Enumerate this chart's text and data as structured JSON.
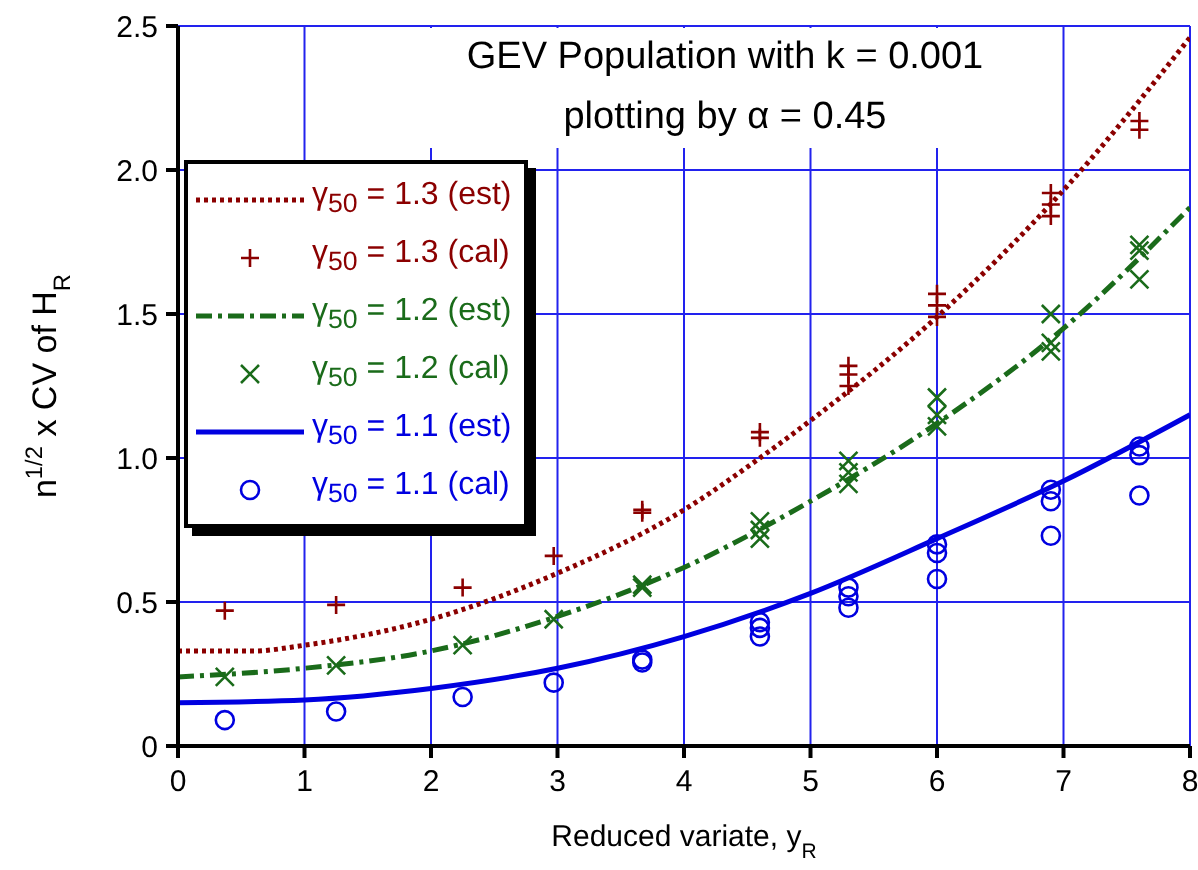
{
  "chart_data": {
    "type": "scatter",
    "title": "GEV  Population  with  k = 0.001",
    "subtitle": "plotting  by  α = 0.45",
    "xlabel": "Reduced variate,  y$_{R}$",
    "ylabel": "n$^{1/2}$ x CV of  H$_{R}$",
    "xlim": [
      0,
      8
    ],
    "xticks": [
      0,
      1,
      2,
      3,
      4,
      5,
      6,
      7,
      8
    ],
    "ylim": [
      0,
      2.5
    ],
    "yticks": [
      0,
      0.5,
      {
        "value": 1,
        "label": "1.0"
      },
      1.5,
      {
        "value": 2,
        "label": "2.0"
      },
      2.5
    ],
    "grid": true,
    "legend": "top left",
    "series": [
      {
        "name": "γ$_{50}$ = 1.3 (est)",
        "type": "line",
        "color": "#8b0000",
        "line_style": "dotted",
        "marker": "none",
        "x": [
          0,
          0.6,
          1,
          2,
          3,
          4,
          4.6,
          5,
          6,
          7,
          8
        ],
        "values": [
          0.33,
          0.33,
          0.35,
          0.44,
          0.6,
          0.82,
          1.0,
          1.13,
          1.49,
          1.93,
          2.46
        ]
      },
      {
        "name": "γ$_{50}$ = 1.3 (cal)",
        "color": "#8b0000",
        "marker": "plus",
        "x": [
          0.37,
          1.25,
          2.25,
          2.97,
          3.67,
          3.67,
          4.6,
          4.6,
          5.3,
          5.3,
          5.3,
          6.0,
          6.0,
          6.0,
          6.9,
          6.9,
          6.9,
          7.6,
          7.6
        ],
        "values": [
          0.47,
          0.49,
          0.55,
          0.66,
          0.82,
          0.81,
          1.09,
          1.07,
          1.32,
          1.29,
          1.25,
          1.57,
          1.53,
          1.49,
          1.92,
          1.88,
          1.84,
          2.17,
          2.14
        ]
      },
      {
        "name": "γ$_{50}$ = 1.2 (est)",
        "type": "line",
        "color": "#1a6b1a",
        "line_style": "dashed",
        "marker": "none",
        "x": [
          0,
          1,
          2,
          3,
          4,
          5,
          6,
          7,
          8
        ],
        "values": [
          0.24,
          0.27,
          0.33,
          0.45,
          0.62,
          0.85,
          1.12,
          1.45,
          1.87
        ]
      },
      {
        "name": "γ$_{50}$ = 1.2 (cal)",
        "color": "#1a6b1a",
        "marker": "cross",
        "x": [
          0.37,
          1.25,
          2.25,
          2.97,
          3.67,
          3.67,
          4.6,
          4.6,
          4.6,
          5.3,
          5.3,
          5.3,
          6.0,
          6.0,
          6.0,
          6.9,
          6.9,
          6.9,
          7.6,
          7.6,
          7.6
        ],
        "values": [
          0.24,
          0.28,
          0.35,
          0.44,
          0.56,
          0.55,
          0.78,
          0.75,
          0.72,
          0.99,
          0.95,
          0.91,
          1.21,
          1.15,
          1.11,
          1.5,
          1.4,
          1.37,
          1.74,
          1.72,
          1.62
        ]
      },
      {
        "name": "γ$_{50}$ = 1.1 (est)",
        "type": "line",
        "color": "#0000e0",
        "line_style": "solid",
        "marker": "none",
        "x": [
          0,
          1,
          2,
          3,
          4,
          5,
          6,
          7,
          8
        ],
        "values": [
          0.15,
          0.16,
          0.2,
          0.27,
          0.38,
          0.53,
          0.72,
          0.92,
          1.15
        ]
      },
      {
        "name": "γ$_{50}$ = 1.1 (cal)",
        "color": "#0000e0",
        "marker": "circle",
        "x": [
          0.37,
          1.25,
          2.25,
          2.97,
          3.67,
          3.67,
          4.6,
          4.6,
          4.6,
          5.3,
          5.3,
          5.3,
          6.0,
          6.0,
          6.0,
          6.9,
          6.9,
          6.9,
          7.6,
          7.6,
          7.6
        ],
        "values": [
          0.09,
          0.12,
          0.17,
          0.22,
          0.3,
          0.29,
          0.43,
          0.41,
          0.38,
          0.55,
          0.52,
          0.48,
          0.7,
          0.67,
          0.58,
          0.89,
          0.85,
          0.73,
          1.04,
          1.01,
          0.87
        ]
      }
    ]
  }
}
